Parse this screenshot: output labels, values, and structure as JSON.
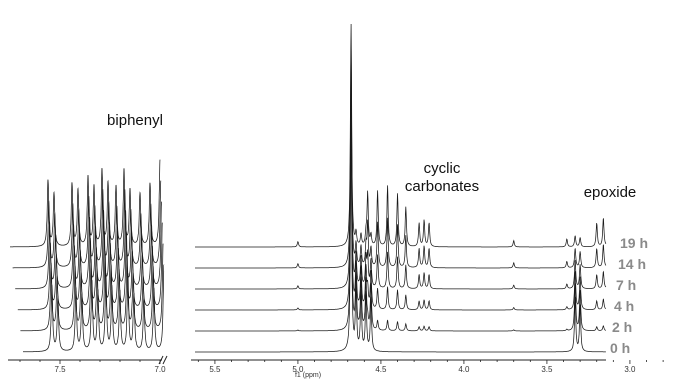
{
  "chart_data": {
    "type": "line",
    "title": "",
    "xlabel": "f1 (ppm)",
    "ylabel": "",
    "xlim": [
      7.75,
      2.72
    ],
    "axis_break_after_ppm": 7.0,
    "axis_break_resume_ppm": 5.62,
    "x_ticks": [
      7.5,
      7.0,
      5.5,
      5.0,
      4.5,
      4.0,
      3.5,
      3.0
    ],
    "tick_labels": [
      "7.5",
      "7.0",
      "5.5",
      "5.0",
      "4.5",
      "4.0",
      "3.5",
      "3.0"
    ],
    "grid": false,
    "stack_order": "bottom-to-top",
    "series": [
      {
        "name": "0 h",
        "epoxide": 1.0,
        "carbonate": 0.0
      },
      {
        "name": "2 h",
        "epoxide": 0.86,
        "carbonate": 0.14
      },
      {
        "name": "4 h",
        "epoxide": 0.7,
        "carbonate": 0.3
      },
      {
        "name": "7 h",
        "epoxide": 0.52,
        "carbonate": 0.48
      },
      {
        "name": "14 h",
        "epoxide": 0.35,
        "carbonate": 0.65
      },
      {
        "name": "19 h",
        "epoxide": 0.2,
        "carbonate": 0.8
      }
    ],
    "peaks": {
      "common": [
        {
          "ppm": 7.56,
          "height": 1.0
        },
        {
          "ppm": 7.53,
          "height": 0.8
        },
        {
          "ppm": 7.44,
          "height": 0.95
        },
        {
          "ppm": 7.41,
          "height": 0.85
        },
        {
          "ppm": 7.36,
          "height": 1.05
        },
        {
          "ppm": 7.33,
          "height": 0.9
        },
        {
          "ppm": 7.29,
          "height": 1.15
        },
        {
          "ppm": 7.26,
          "height": 0.95
        },
        {
          "ppm": 7.22,
          "height": 0.9
        },
        {
          "ppm": 7.18,
          "height": 1.15
        },
        {
          "ppm": 7.15,
          "height": 0.85
        },
        {
          "ppm": 7.1,
          "height": 0.8
        },
        {
          "ppm": 7.05,
          "height": 0.95
        },
        {
          "ppm": 7.0,
          "height": 1.3
        },
        {
          "ppm": 6.96,
          "height": 0.9
        },
        {
          "ppm": 4.68,
          "height": 3.4
        }
      ],
      "epoxide": [
        {
          "ppm": 4.65,
          "height": 0.95
        },
        {
          "ppm": 4.62,
          "height": 0.9
        },
        {
          "ppm": 4.59,
          "height": 0.88
        },
        {
          "ppm": 4.56,
          "height": 0.82
        },
        {
          "ppm": 3.33,
          "height": 0.85
        },
        {
          "ppm": 3.3,
          "height": 0.7
        },
        {
          "ppm": 2.92,
          "height": 1.0
        },
        {
          "ppm": 2.89,
          "height": 0.95
        },
        {
          "ppm": 2.77,
          "height": 0.95
        },
        {
          "ppm": 2.74,
          "height": 0.88
        }
      ],
      "carbonate": [
        {
          "ppm": 5.0,
          "height": 0.1
        },
        {
          "ppm": 4.58,
          "height": 1.0
        },
        {
          "ppm": 4.52,
          "height": 1.05
        },
        {
          "ppm": 4.46,
          "height": 1.15
        },
        {
          "ppm": 4.4,
          "height": 1.0
        },
        {
          "ppm": 4.35,
          "height": 0.75
        },
        {
          "ppm": 4.27,
          "height": 0.45
        },
        {
          "ppm": 4.24,
          "height": 0.5
        },
        {
          "ppm": 4.21,
          "height": 0.45
        },
        {
          "ppm": 3.7,
          "height": 0.12
        },
        {
          "ppm": 3.38,
          "height": 0.15
        },
        {
          "ppm": 3.2,
          "height": 0.45
        },
        {
          "ppm": 3.16,
          "height": 0.55
        },
        {
          "ppm": 3.12,
          "height": 0.4
        }
      ]
    },
    "annotations": [
      {
        "text": "biphenyl",
        "ppm": 7.25
      },
      {
        "text": "cyclic carbonates",
        "ppm": 4.05
      },
      {
        "text": "epoxide",
        "ppm": 2.92
      }
    ]
  },
  "labels": {
    "biphenyl": "biphenyl",
    "cyclic_line1": "cyclic",
    "cyclic_line2": "carbonates",
    "epoxide": "epoxide",
    "xlabel": "f1 (ppm)"
  }
}
